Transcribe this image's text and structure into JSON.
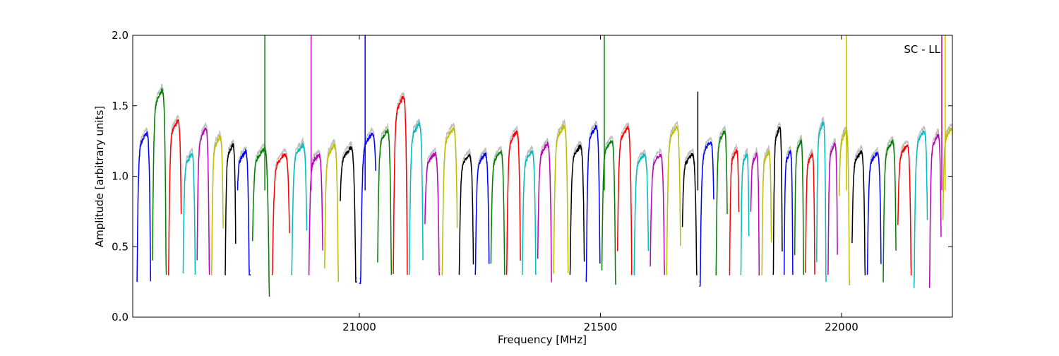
{
  "chart_data": {
    "type": "line",
    "title": "",
    "annotation": "SC - LL",
    "xlabel": "Frequency [MHz]",
    "ylabel": "Amplitude [arbitrary units]",
    "xlim": [
      20530,
      22230
    ],
    "ylim": [
      0.0,
      2.0
    ],
    "xticks": [
      21000,
      21500,
      22000
    ],
    "yticks": [
      0.0,
      0.5,
      1.0,
      1.5,
      2.0
    ],
    "xtick_labels": [
      "21000",
      "21500",
      "22000"
    ],
    "ytick_labels": [
      "0.0",
      "0.5",
      "1.0",
      "1.5",
      "2.0"
    ],
    "grid": false,
    "legend": "none",
    "background_trace_color": "#bfbfbf",
    "color_cycle": [
      "#0000ff",
      "#008000",
      "#ff0000",
      "#00bfbf",
      "#bf00bf",
      "#bfbf00",
      "#000000"
    ],
    "band_centers": [
      20553,
      20585,
      20618,
      20647,
      20676,
      20706,
      20733,
      20758,
      20795,
      20838,
      20876,
      20910,
      20942,
      20975,
      21020,
      21052,
      21085,
      21118,
      21150,
      21188,
      21222,
      21255,
      21287,
      21320,
      21352,
      21384,
      21418,
      21452,
      21485,
      21517,
      21550,
      21585,
      21618,
      21652,
      21684,
      21722,
      21752,
      21778,
      21800,
      21820,
      21845,
      21868,
      21890,
      21912,
      21935,
      21958,
      21982,
      22005,
      22035,
      22068,
      22100,
      22130,
      22165,
      22195,
      22222
    ],
    "band_peaks": [
      1.36,
      1.68,
      1.45,
      1.2,
      1.39,
      1.33,
      1.27,
      1.22,
      1.25,
      1.2,
      1.27,
      1.2,
      1.27,
      1.25,
      1.36,
      1.38,
      1.63,
      1.43,
      1.21,
      1.39,
      1.2,
      1.2,
      1.22,
      1.37,
      1.22,
      1.28,
      1.41,
      1.26,
      1.41,
      1.31,
      1.4,
      1.2,
      1.2,
      1.41,
      1.2,
      1.3,
      1.37,
      1.23,
      1.2,
      1.2,
      1.22,
      1.4,
      1.22,
      1.3,
      1.2,
      1.44,
      1.28,
      1.38,
      1.22,
      1.21,
      1.3,
      1.27,
      1.38,
      1.35,
      1.4
    ],
    "band_minimums": [
      0.25,
      0.3,
      0.3,
      0.3,
      0.3,
      0.3,
      0.3,
      0.3,
      0.15,
      0.3,
      0.3,
      0.3,
      0.25,
      0.25,
      0.24,
      0.3,
      0.3,
      0.3,
      0.3,
      0.3,
      0.3,
      0.3,
      0.3,
      0.3,
      0.3,
      0.25,
      0.3,
      0.3,
      0.25,
      0.23,
      0.3,
      0.3,
      0.3,
      0.3,
      0.3,
      0.22,
      0.3,
      0.3,
      0.3,
      0.3,
      0.3,
      0.3,
      0.3,
      0.3,
      0.3,
      0.25,
      0.3,
      0.23,
      0.3,
      0.3,
      0.25,
      0.3,
      0.21,
      0.21,
      0.25
    ],
    "spikes": [
      {
        "x": 20804,
        "y": 2.0
      },
      {
        "x": 20900,
        "y": 2.0
      },
      {
        "x": 21012,
        "y": 2.0
      },
      {
        "x": 21508,
        "y": 2.0
      },
      {
        "x": 21702,
        "y": 1.6
      },
      {
        "x": 22010,
        "y": 2.0
      },
      {
        "x": 22208,
        "y": 2.0
      },
      {
        "x": 22215,
        "y": 2.0
      }
    ]
  }
}
